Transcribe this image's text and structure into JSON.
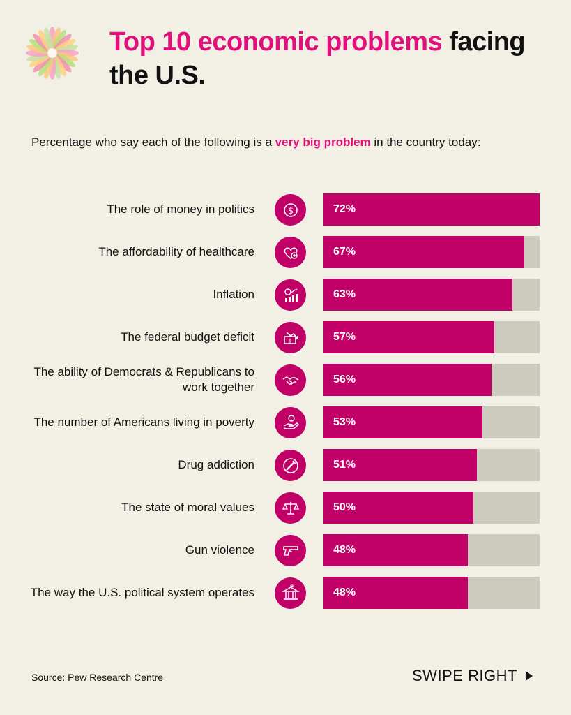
{
  "header": {
    "title_accent": "Top 10 economic problems",
    "title_rest": " facing the U.S.",
    "subtitle_before": "Percentage who say each of the following is a ",
    "subtitle_highlight": "very big problem",
    "subtitle_after": " in the country today:"
  },
  "colors": {
    "accent": "#e0117a",
    "bar": "#c10068",
    "track": "#cdcbbe",
    "background": "#f2efe4"
  },
  "chart_data": {
    "type": "bar",
    "orientation": "horizontal",
    "categories": [
      "The role of money in politics",
      "The affordability of healthcare",
      "Inflation",
      "The federal budget deficit",
      "The ability of Democrats & Republicans to work together",
      "The number of Americans living in poverty",
      "Drug addiction",
      "The state of moral values",
      "Gun violence",
      "The way the U.S. political system operates"
    ],
    "values": [
      72,
      67,
      63,
      57,
      56,
      53,
      51,
      50,
      48,
      48
    ],
    "value_labels": [
      "72%",
      "67%",
      "63%",
      "57%",
      "56%",
      "53%",
      "51%",
      "50%",
      "48%",
      "48%"
    ],
    "icons": [
      "dollar-coin-icon",
      "heart-plus-icon",
      "money-chart-icon",
      "cash-down-icon",
      "handshake-icon",
      "hand-coin-icon",
      "syringe-icon",
      "scales-icon",
      "gun-icon",
      "government-building-icon"
    ],
    "xlim": [
      0,
      72
    ],
    "title": "",
    "xlabel": "",
    "ylabel": ""
  },
  "footer": {
    "source": "Source: Pew Research Centre",
    "swipe": "SWIPE RIGHT"
  }
}
